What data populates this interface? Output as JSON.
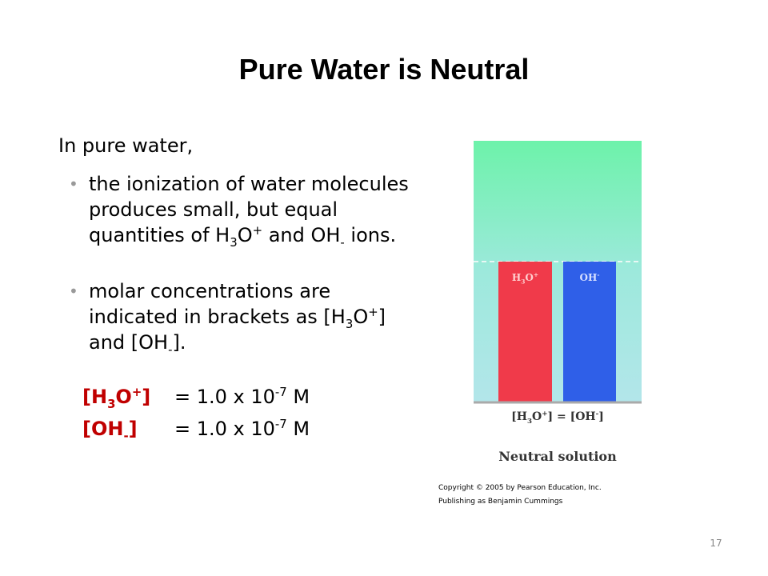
{
  "title": "Pure Water is Neutral",
  "intro": "In pure water,",
  "bullets": [
    [
      {
        "t": "the ionization of water molecules produces small, but equal quantities of H"
      },
      {
        "sub": "3"
      },
      {
        "t": "O"
      },
      {
        "sup": "+"
      },
      {
        "t": " and OH"
      },
      {
        "sub": "-"
      },
      {
        "t": "  ions."
      }
    ],
    [
      {
        "t": "molar concentrations are indicated in brackets as [H"
      },
      {
        "sub": "3"
      },
      {
        "t": "O"
      },
      {
        "sup": "+"
      },
      {
        "t": "] and [OH"
      },
      {
        "sub": "-"
      },
      {
        "t": "]."
      }
    ]
  ],
  "equations": [
    {
      "label": [
        {
          "t": "[H"
        },
        {
          "sub": "3"
        },
        {
          "t": "O"
        },
        {
          "sup": "+"
        },
        {
          "t": "]"
        }
      ],
      "value": [
        {
          "t": "= 1.0 x 10"
        },
        {
          "sup": "-7"
        },
        {
          "t": " M"
        }
      ]
    },
    {
      "label": [
        {
          "t": "[OH"
        },
        {
          "sub": "-"
        },
        {
          "t": "]"
        }
      ],
      "value": [
        {
          "t": "= 1.0 x 10"
        },
        {
          "sup": "-7"
        },
        {
          "t": " M"
        }
      ]
    }
  ],
  "figure": {
    "bar_labels": [
      [
        {
          "t": "H"
        },
        {
          "sub": "3"
        },
        {
          "t": "O"
        },
        {
          "sup": "+"
        }
      ],
      [
        {
          "t": "OH"
        },
        {
          "sup": "-"
        }
      ]
    ],
    "equation": [
      {
        "t": "[H"
      },
      {
        "sub": "3"
      },
      {
        "t": "O"
      },
      {
        "sup": "+"
      },
      {
        "t": "] = [OH"
      },
      {
        "sup": "-"
      },
      {
        "t": "]"
      }
    ],
    "caption": "Neutral solution"
  },
  "copyright": [
    "Copyright © 2005  by Pearson Education, Inc.",
    "Publishing as Benjamin Cummings"
  ],
  "page_number": "17"
}
